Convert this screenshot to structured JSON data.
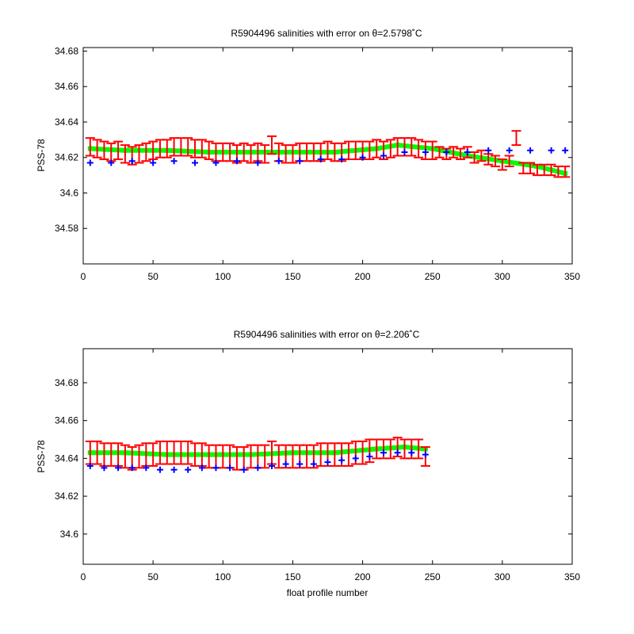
{
  "chart_data": [
    {
      "type": "scatter",
      "title": "R5904496 salinities with error on θ=2.5798˚C",
      "xlabel": "",
      "ylabel": "PSS-78",
      "xlim": [
        0,
        350
      ],
      "ylim": [
        34.56,
        34.682
      ],
      "x_ticks": [
        0,
        50,
        100,
        150,
        200,
        250,
        300,
        350
      ],
      "y_ticks": [
        34.58,
        34.6,
        34.62,
        34.64,
        34.66,
        34.68
      ],
      "x_tick_labels": [
        "0",
        "50",
        "100",
        "150",
        "200",
        "250",
        "300",
        "350"
      ],
      "y_tick_labels": [
        "34.58",
        "34.6",
        "34.62",
        "34.64",
        "34.66",
        "34.68"
      ],
      "grid": false,
      "colors": {
        "blue": "#0000ff",
        "green": "#00ff00",
        "red": "#ff0000"
      },
      "series": [
        {
          "marker": "plus",
          "color": "blue",
          "x": [
            5,
            20,
            35,
            50,
            65,
            80,
            95,
            110,
            125,
            140,
            155,
            170,
            185,
            200,
            215,
            230,
            245,
            260,
            275,
            290,
            305,
            320,
            335,
            345
          ],
          "y": [
            34.617,
            34.617,
            34.618,
            34.617,
            34.618,
            34.617,
            34.617,
            34.618,
            34.617,
            34.618,
            34.618,
            34.619,
            34.619,
            34.62,
            34.621,
            34.623,
            34.623,
            34.623,
            34.623,
            34.624,
            34.624,
            34.624,
            34.624,
            34.624
          ]
        },
        {
          "marker": "line-band",
          "color": "green",
          "x": [
            5,
            30,
            60,
            90,
            120,
            150,
            180,
            210,
            225,
            250,
            275,
            300,
            325,
            345
          ],
          "y": [
            34.625,
            34.624,
            34.624,
            34.623,
            34.623,
            34.623,
            34.623,
            34.625,
            34.627,
            34.625,
            34.621,
            34.618,
            34.615,
            34.611
          ]
        },
        {
          "marker": "errorbar",
          "color": "red",
          "x": [
            5,
            10,
            15,
            20,
            25,
            30,
            35,
            40,
            45,
            50,
            55,
            60,
            65,
            70,
            75,
            80,
            85,
            90,
            95,
            100,
            105,
            110,
            115,
            120,
            125,
            130,
            135,
            140,
            145,
            150,
            155,
            160,
            165,
            170,
            175,
            180,
            185,
            190,
            195,
            200,
            205,
            210,
            215,
            220,
            225,
            230,
            235,
            240,
            245,
            250,
            255,
            260,
            265,
            270,
            275,
            280,
            285,
            290,
            295,
            300,
            305,
            310,
            315,
            320,
            325,
            330,
            335,
            340,
            345
          ],
          "y": [
            34.626,
            34.625,
            34.624,
            34.623,
            34.624,
            34.622,
            34.621,
            34.622,
            34.623,
            34.624,
            34.625,
            34.625,
            34.626,
            34.626,
            34.626,
            34.625,
            34.625,
            34.624,
            34.623,
            34.623,
            34.623,
            34.622,
            34.623,
            34.622,
            34.623,
            34.622,
            34.627,
            34.623,
            34.622,
            34.622,
            34.623,
            34.623,
            34.623,
            34.623,
            34.624,
            34.623,
            34.623,
            34.624,
            34.624,
            34.624,
            34.624,
            34.625,
            34.624,
            34.625,
            34.626,
            34.626,
            34.626,
            34.625,
            34.624,
            34.624,
            34.623,
            34.622,
            34.623,
            34.622,
            34.623,
            34.62,
            34.621,
            34.619,
            34.618,
            34.616,
            34.618,
            34.631,
            34.614,
            34.614,
            34.613,
            34.613,
            34.613,
            34.612,
            34.612
          ],
          "err": [
            0.005,
            0.005,
            0.005,
            0.005,
            0.005,
            0.005,
            0.005,
            0.005,
            0.005,
            0.005,
            0.005,
            0.005,
            0.005,
            0.005,
            0.005,
            0.005,
            0.005,
            0.005,
            0.005,
            0.005,
            0.005,
            0.005,
            0.005,
            0.005,
            0.005,
            0.005,
            0.005,
            0.005,
            0.005,
            0.005,
            0.005,
            0.005,
            0.005,
            0.005,
            0.005,
            0.005,
            0.005,
            0.005,
            0.005,
            0.005,
            0.005,
            0.005,
            0.005,
            0.005,
            0.005,
            0.005,
            0.005,
            0.005,
            0.005,
            0.005,
            0.003,
            0.003,
            0.003,
            0.003,
            0.003,
            0.003,
            0.003,
            0.003,
            0.003,
            0.003,
            0.003,
            0.004,
            0.003,
            0.003,
            0.003,
            0.003,
            0.003,
            0.003,
            0.003
          ]
        }
      ]
    },
    {
      "type": "scatter",
      "title": "R5904496 salinities with error on θ=2.206˚C",
      "xlabel": "float profile number",
      "ylabel": "PSS-78",
      "xlim": [
        0,
        350
      ],
      "ylim": [
        34.584,
        34.698
      ],
      "x_ticks": [
        0,
        50,
        100,
        150,
        200,
        250,
        300,
        350
      ],
      "y_ticks": [
        34.6,
        34.62,
        34.64,
        34.66,
        34.68
      ],
      "x_tick_labels": [
        "0",
        "50",
        "100",
        "150",
        "200",
        "250",
        "300",
        "350"
      ],
      "y_tick_labels": [
        "34.6",
        "34.62",
        "34.64",
        "34.66",
        "34.68"
      ],
      "grid": false,
      "colors": {
        "blue": "#0000ff",
        "green": "#00ff00",
        "red": "#ff0000"
      },
      "series": [
        {
          "marker": "plus",
          "color": "blue",
          "x": [
            5,
            15,
            25,
            35,
            45,
            55,
            65,
            75,
            85,
            95,
            105,
            115,
            125,
            135,
            145,
            155,
            165,
            175,
            185,
            195,
            205,
            215,
            225,
            235,
            245
          ],
          "y": [
            34.636,
            34.635,
            34.635,
            34.635,
            34.635,
            34.634,
            34.634,
            34.634,
            34.635,
            34.635,
            34.635,
            34.634,
            34.635,
            34.636,
            34.637,
            34.637,
            34.637,
            34.638,
            34.639,
            34.64,
            34.641,
            34.643,
            34.643,
            34.643,
            34.642
          ]
        },
        {
          "marker": "line-band",
          "color": "green",
          "x": [
            5,
            30,
            60,
            90,
            120,
            150,
            180,
            210,
            230,
            245
          ],
          "y": [
            34.643,
            34.643,
            34.642,
            34.642,
            34.642,
            34.643,
            34.643,
            34.645,
            34.646,
            34.645
          ]
        },
        {
          "marker": "errorbar",
          "color": "red",
          "x": [
            5,
            10,
            15,
            20,
            25,
            30,
            35,
            40,
            45,
            50,
            55,
            60,
            65,
            70,
            75,
            80,
            85,
            90,
            95,
            100,
            105,
            110,
            115,
            120,
            125,
            130,
            135,
            140,
            145,
            150,
            155,
            160,
            165,
            170,
            175,
            180,
            185,
            190,
            195,
            200,
            205,
            210,
            215,
            220,
            225,
            230,
            235,
            240,
            245
          ],
          "y": [
            34.643,
            34.643,
            34.642,
            34.642,
            34.642,
            34.641,
            34.64,
            34.641,
            34.642,
            34.642,
            34.643,
            34.643,
            34.643,
            34.643,
            34.643,
            34.642,
            34.642,
            34.641,
            34.641,
            34.641,
            34.641,
            34.64,
            34.64,
            34.641,
            34.641,
            34.641,
            34.643,
            34.641,
            34.641,
            34.641,
            34.641,
            34.641,
            34.641,
            34.642,
            34.642,
            34.642,
            34.642,
            34.642,
            34.643,
            34.643,
            34.644,
            34.645,
            34.645,
            34.645,
            34.646,
            34.645,
            34.645,
            34.645,
            34.641
          ],
          "err": [
            0.006,
            0.006,
            0.006,
            0.006,
            0.006,
            0.006,
            0.006,
            0.006,
            0.006,
            0.006,
            0.006,
            0.006,
            0.006,
            0.006,
            0.006,
            0.006,
            0.006,
            0.006,
            0.006,
            0.006,
            0.006,
            0.006,
            0.006,
            0.006,
            0.006,
            0.006,
            0.006,
            0.006,
            0.006,
            0.006,
            0.006,
            0.006,
            0.006,
            0.006,
            0.006,
            0.006,
            0.006,
            0.006,
            0.006,
            0.006,
            0.006,
            0.005,
            0.005,
            0.005,
            0.005,
            0.005,
            0.005,
            0.005,
            0.005
          ]
        }
      ]
    }
  ]
}
